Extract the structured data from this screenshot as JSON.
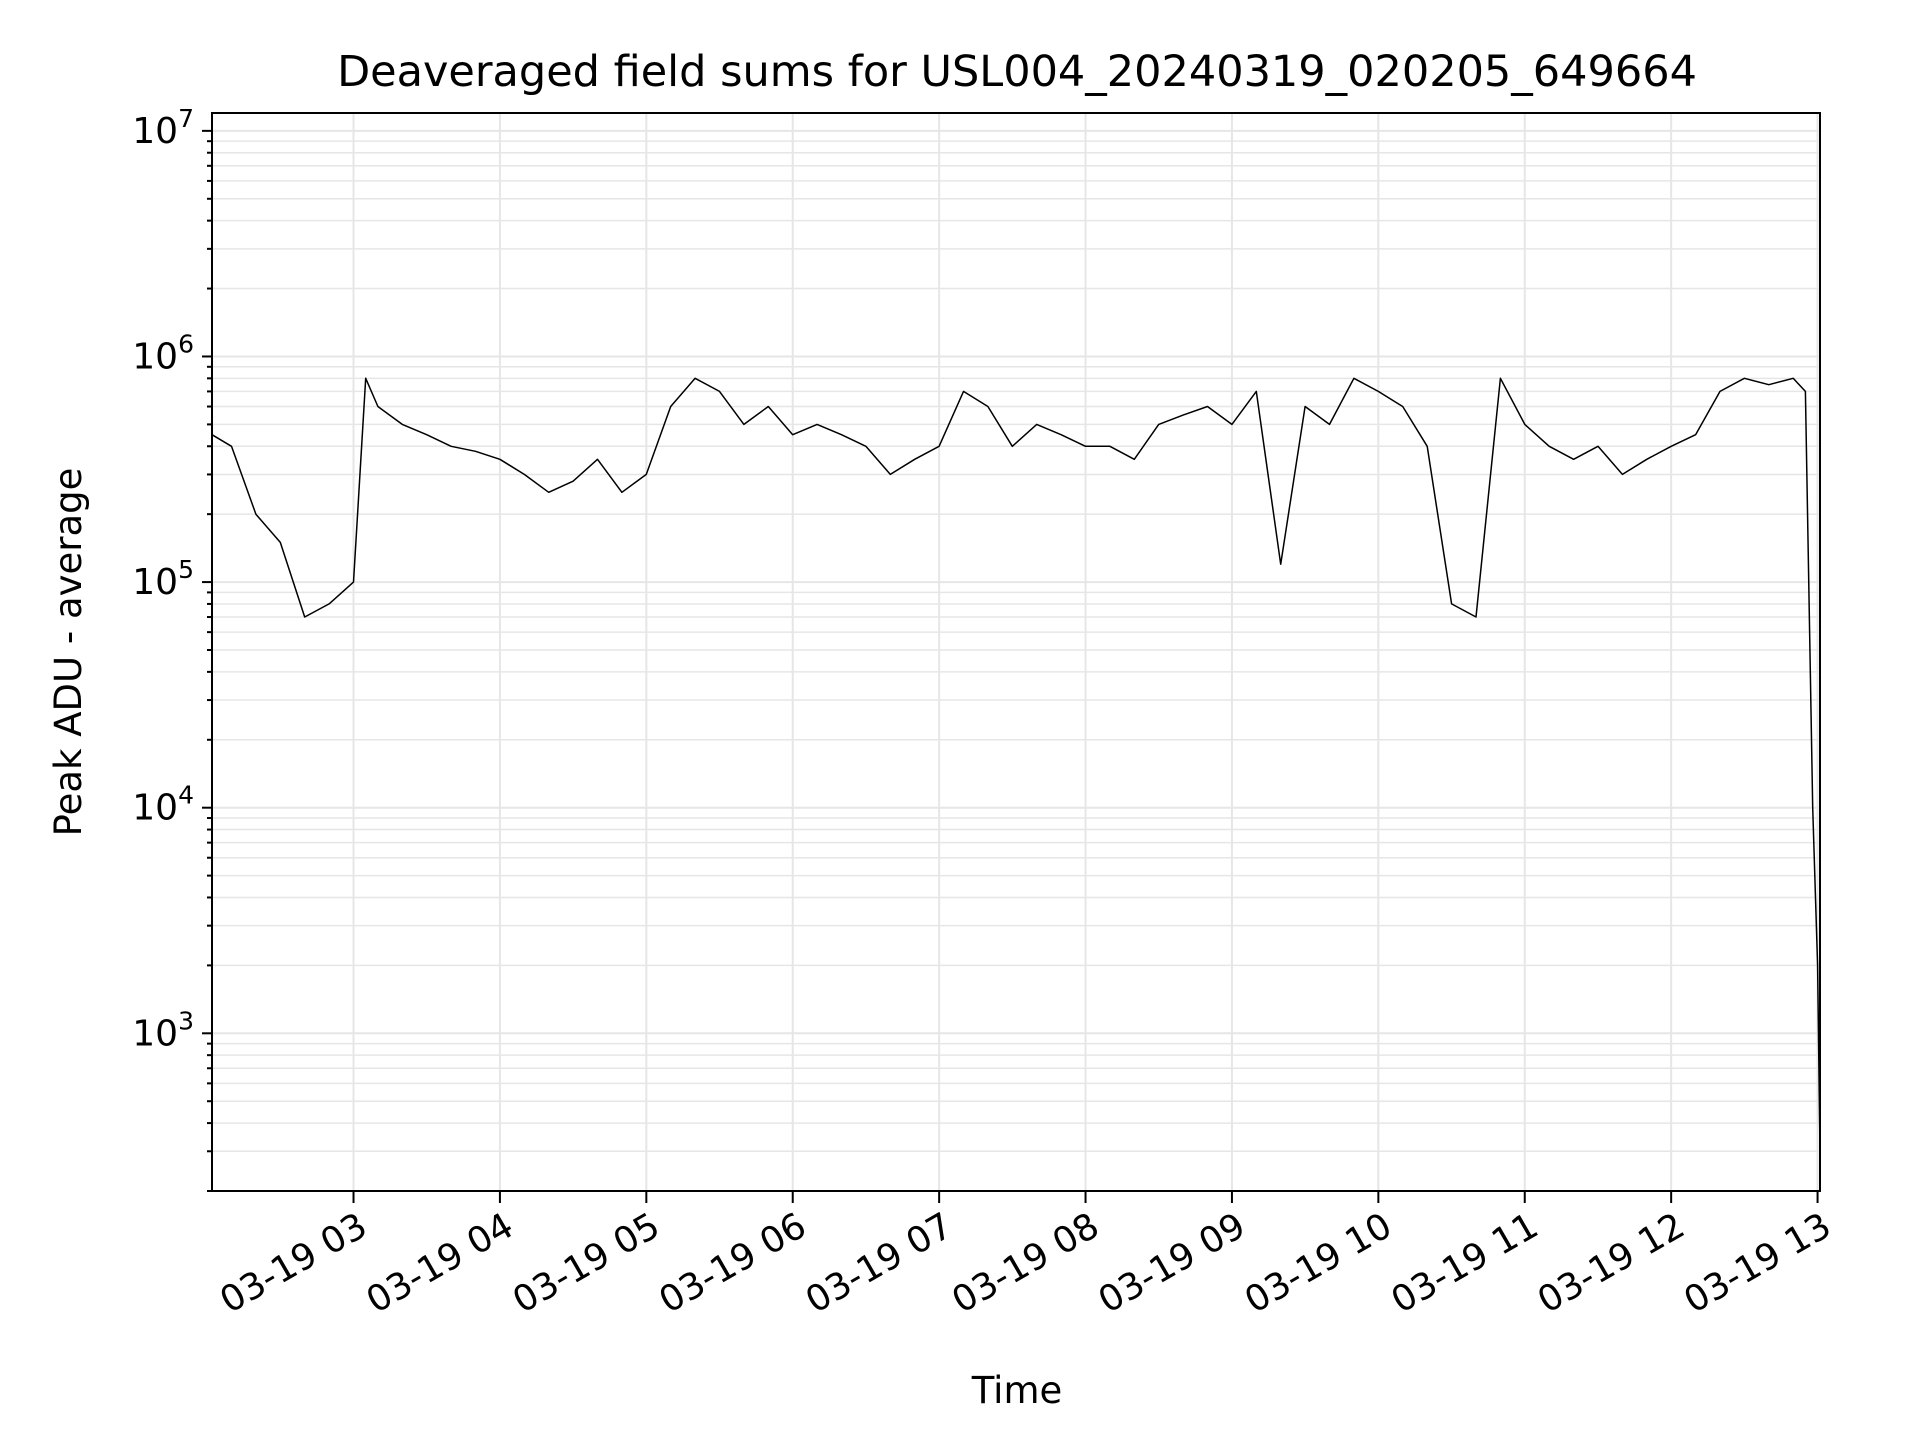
{
  "chart_data": {
    "type": "line",
    "title": "Deaveraged field sums for USL004_20240319_020205_649664",
    "xlabel": "Time",
    "ylabel": "Peak ADU - average",
    "yscale": "log",
    "ylim": [
      200,
      12000000
    ],
    "xlim": [
      "2024-03-19 02:02",
      "2024-03-19 13:01"
    ],
    "grid": true,
    "x_ticks": [
      "03-19 03",
      "03-19 04",
      "03-19 05",
      "03-19 06",
      "03-19 07",
      "03-19 08",
      "03-19 09",
      "03-19 10",
      "03-19 11",
      "03-19 12",
      "03-19 13"
    ],
    "y_ticks": [
      {
        "base": "10",
        "exp": "3",
        "value": 1000
      },
      {
        "base": "10",
        "exp": "4",
        "value": 10000
      },
      {
        "base": "10",
        "exp": "5",
        "value": 100000
      },
      {
        "base": "10",
        "exp": "6",
        "value": 1000000
      },
      {
        "base": "10",
        "exp": "7",
        "value": 10000000
      }
    ],
    "line_color": "#000000",
    "series": [
      {
        "x": [
          "2024-03-19 02:02",
          "2024-03-19 02:10",
          "2024-03-19 02:20",
          "2024-03-19 02:30",
          "2024-03-19 02:40",
          "2024-03-19 02:50",
          "2024-03-19 03:00",
          "2024-03-19 03:05",
          "2024-03-19 03:10",
          "2024-03-19 03:20",
          "2024-03-19 03:30",
          "2024-03-19 03:40",
          "2024-03-19 03:50",
          "2024-03-19 04:00",
          "2024-03-19 04:10",
          "2024-03-19 04:20",
          "2024-03-19 04:30",
          "2024-03-19 04:40",
          "2024-03-19 04:50",
          "2024-03-19 05:00",
          "2024-03-19 05:10",
          "2024-03-19 05:20",
          "2024-03-19 05:30",
          "2024-03-19 05:40",
          "2024-03-19 05:50",
          "2024-03-19 06:00",
          "2024-03-19 06:10",
          "2024-03-19 06:20",
          "2024-03-19 06:30",
          "2024-03-19 06:40",
          "2024-03-19 06:50",
          "2024-03-19 07:00",
          "2024-03-19 07:10",
          "2024-03-19 07:20",
          "2024-03-19 07:30",
          "2024-03-19 07:40",
          "2024-03-19 07:50",
          "2024-03-19 08:00",
          "2024-03-19 08:10",
          "2024-03-19 08:20",
          "2024-03-19 08:30",
          "2024-03-19 08:40",
          "2024-03-19 08:50",
          "2024-03-19 09:00",
          "2024-03-19 09:10",
          "2024-03-19 09:20",
          "2024-03-19 09:30",
          "2024-03-19 09:40",
          "2024-03-19 09:50",
          "2024-03-19 10:00",
          "2024-03-19 10:10",
          "2024-03-19 10:20",
          "2024-03-19 10:30",
          "2024-03-19 10:40",
          "2024-03-19 10:50",
          "2024-03-19 11:00",
          "2024-03-19 11:10",
          "2024-03-19 11:20",
          "2024-03-19 11:30",
          "2024-03-19 11:40",
          "2024-03-19 11:50",
          "2024-03-19 12:00",
          "2024-03-19 12:10",
          "2024-03-19 12:20",
          "2024-03-19 12:30",
          "2024-03-19 12:40",
          "2024-03-19 12:50",
          "2024-03-19 12:55",
          "2024-03-19 12:58",
          "2024-03-19 13:00",
          "2024-03-19 13:01"
        ],
        "y": [
          450000,
          400000,
          200000,
          150000,
          70000,
          80000,
          100000,
          800000,
          600000,
          500000,
          450000,
          400000,
          380000,
          350000,
          300000,
          250000,
          280000,
          350000,
          250000,
          300000,
          600000,
          800000,
          700000,
          500000,
          600000,
          450000,
          500000,
          450000,
          400000,
          300000,
          350000,
          400000,
          700000,
          600000,
          400000,
          500000,
          450000,
          400000,
          400000,
          350000,
          500000,
          550000,
          600000,
          500000,
          700000,
          120000,
          600000,
          500000,
          800000,
          700000,
          600000,
          400000,
          80000,
          70000,
          800000,
          500000,
          400000,
          350000,
          400000,
          300000,
          350000,
          400000,
          450000,
          700000,
          800000,
          750000,
          800000,
          700000,
          10000,
          2000,
          300
        ]
      }
    ]
  }
}
